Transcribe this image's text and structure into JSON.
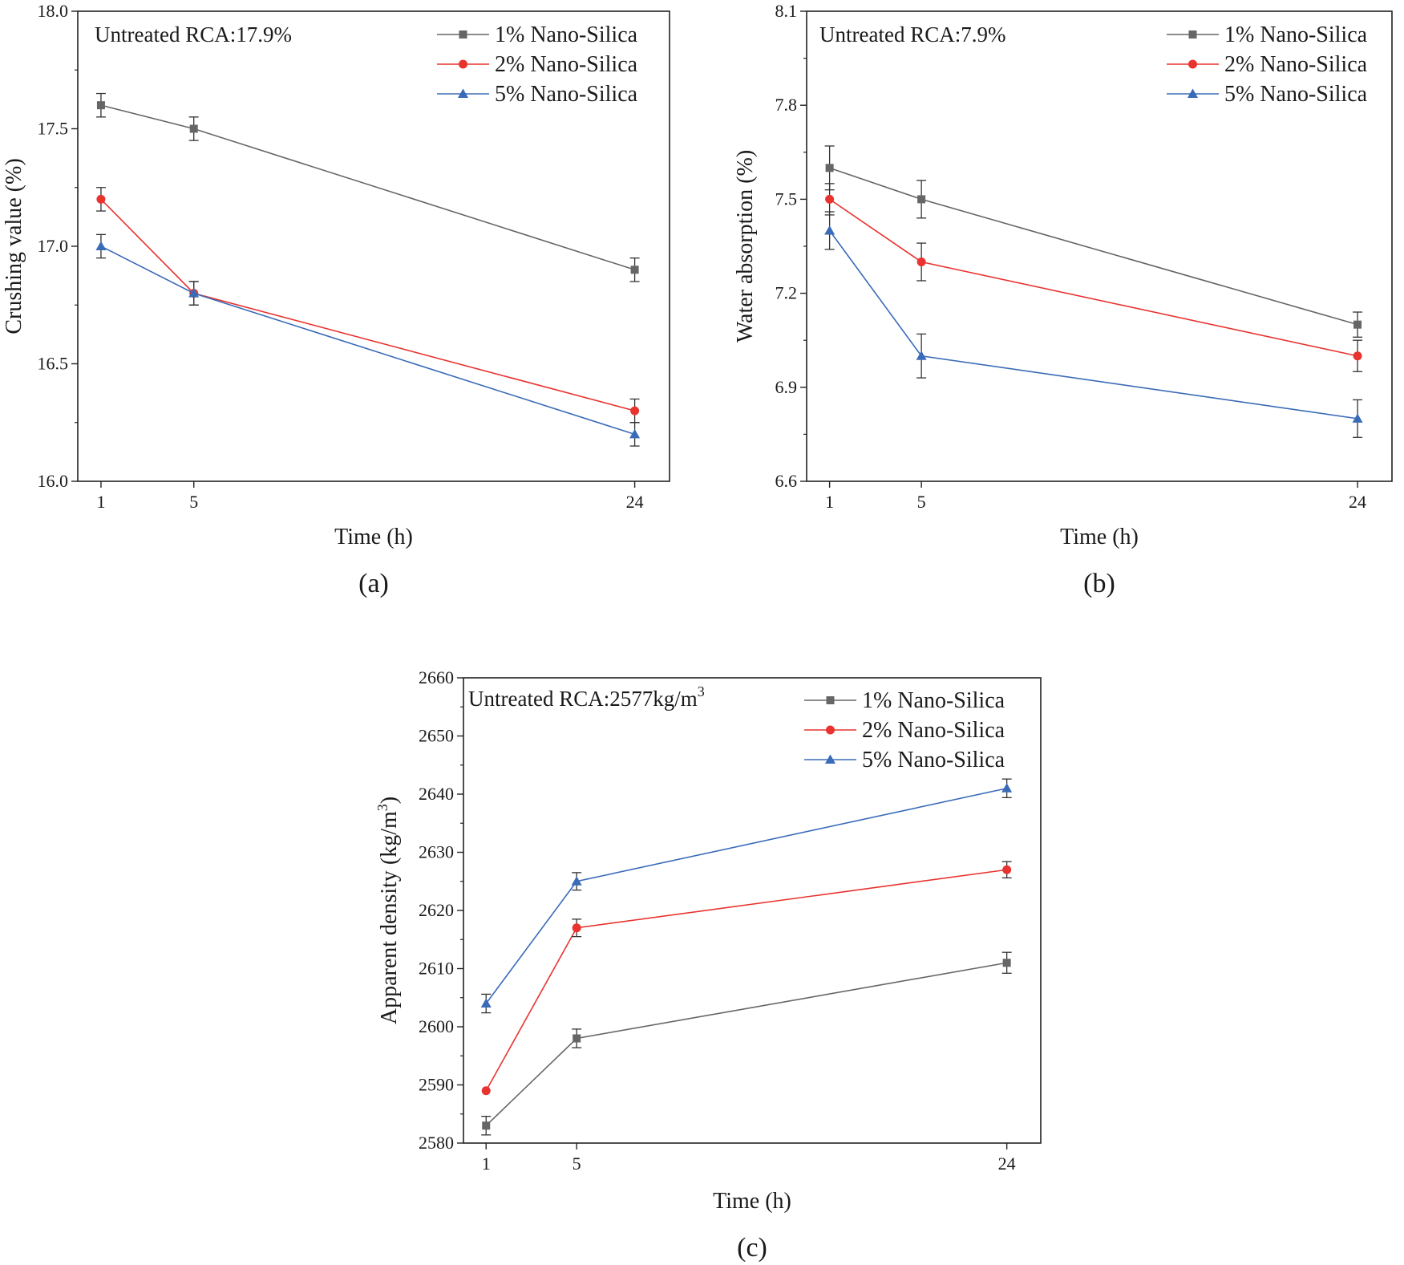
{
  "chart_data": [
    {
      "type": "line",
      "panel_label": "(a)",
      "annotation": "Untreated RCA:17.9%",
      "xlabel": "Time (h)",
      "ylabel": "Crushing value (%)",
      "x": [
        1,
        5,
        24
      ],
      "x_tick_labels": [
        "1",
        "5",
        "24"
      ],
      "xlim": [
        0,
        25.5
      ],
      "ylim": [
        16.0,
        18.0
      ],
      "y_ticks": [
        16.0,
        16.5,
        17.0,
        17.5,
        18.0
      ],
      "y_tick_labels": [
        "16.0",
        "16.5",
        "17.0",
        "17.5",
        "18.0"
      ],
      "legend_position": "top-right",
      "series": [
        {
          "name": "1% Nano-Silica",
          "color": "#666666",
          "marker": "square",
          "values": [
            17.6,
            17.5,
            16.9
          ],
          "errors": [
            0.05,
            0.05,
            0.05
          ]
        },
        {
          "name": "2% Nano-Silica",
          "color": "#e8332f",
          "marker": "circle",
          "values": [
            17.2,
            16.8,
            16.3
          ],
          "errors": [
            0.05,
            0.05,
            0.05
          ]
        },
        {
          "name": "5% Nano-Silica",
          "color": "#3a6bb8",
          "marker": "triangle",
          "values": [
            17.0,
            16.8,
            16.2
          ],
          "errors": [
            0.05,
            0.05,
            0.05
          ]
        }
      ]
    },
    {
      "type": "line",
      "panel_label": "(b)",
      "annotation": "Untreated RCA:7.9%",
      "xlabel": "Time (h)",
      "ylabel": "Water absorption (%)",
      "x": [
        1,
        5,
        24
      ],
      "x_tick_labels": [
        "1",
        "5",
        "24"
      ],
      "xlim": [
        0,
        25.5
      ],
      "ylim": [
        6.6,
        8.1
      ],
      "y_ticks": [
        6.6,
        6.9,
        7.2,
        7.5,
        7.8,
        8.1
      ],
      "y_tick_labels": [
        "6.6",
        "6.9",
        "7.2",
        "7.5",
        "7.8",
        "8.1"
      ],
      "legend_position": "top-right",
      "series": [
        {
          "name": "1% Nano-Silica",
          "color": "#666666",
          "marker": "square",
          "values": [
            7.6,
            7.5,
            7.1
          ],
          "errors": [
            0.07,
            0.06,
            0.04
          ]
        },
        {
          "name": "2% Nano-Silica",
          "color": "#e8332f",
          "marker": "circle",
          "values": [
            7.5,
            7.3,
            7.0
          ],
          "errors": [
            0.05,
            0.06,
            0.05
          ]
        },
        {
          "name": "5% Nano-Silica",
          "color": "#3a6bb8",
          "marker": "triangle",
          "values": [
            7.4,
            7.0,
            6.8
          ],
          "errors": [
            0.06,
            0.07,
            0.06
          ]
        }
      ]
    },
    {
      "type": "line",
      "panel_label": "(c)",
      "annotation": "Untreated RCA:2577kg/m",
      "annotation_superscript": "3",
      "xlabel": "Time (h)",
      "ylabel": "Apparent density (kg/m",
      "ylabel_superscript": "3",
      "ylabel_suffix": ")",
      "x": [
        1,
        5,
        24
      ],
      "x_tick_labels": [
        "1",
        "5",
        "24"
      ],
      "xlim": [
        0,
        25.5
      ],
      "ylim": [
        2580,
        2660
      ],
      "y_ticks": [
        2580,
        2590,
        2600,
        2610,
        2620,
        2630,
        2640,
        2650,
        2660
      ],
      "y_tick_labels": [
        "2580",
        "2590",
        "2600",
        "2610",
        "2620",
        "2630",
        "2640",
        "2650",
        "2660"
      ],
      "legend_position": "top-right",
      "series": [
        {
          "name": "1% Nano-Silica",
          "color": "#666666",
          "marker": "square",
          "values": [
            2583,
            2598,
            2611
          ],
          "errors": [
            1.6,
            1.6,
            1.8
          ]
        },
        {
          "name": "2% Nano-Silica",
          "color": "#e8332f",
          "marker": "circle",
          "values": [
            2589,
            2617,
            2627
          ],
          "errors": [
            0,
            1.5,
            1.4
          ]
        },
        {
          "name": "5% Nano-Silica",
          "color": "#3a6bb8",
          "marker": "triangle",
          "values": [
            2604,
            2625,
            2641
          ],
          "errors": [
            1.6,
            1.5,
            1.6
          ]
        }
      ]
    }
  ]
}
